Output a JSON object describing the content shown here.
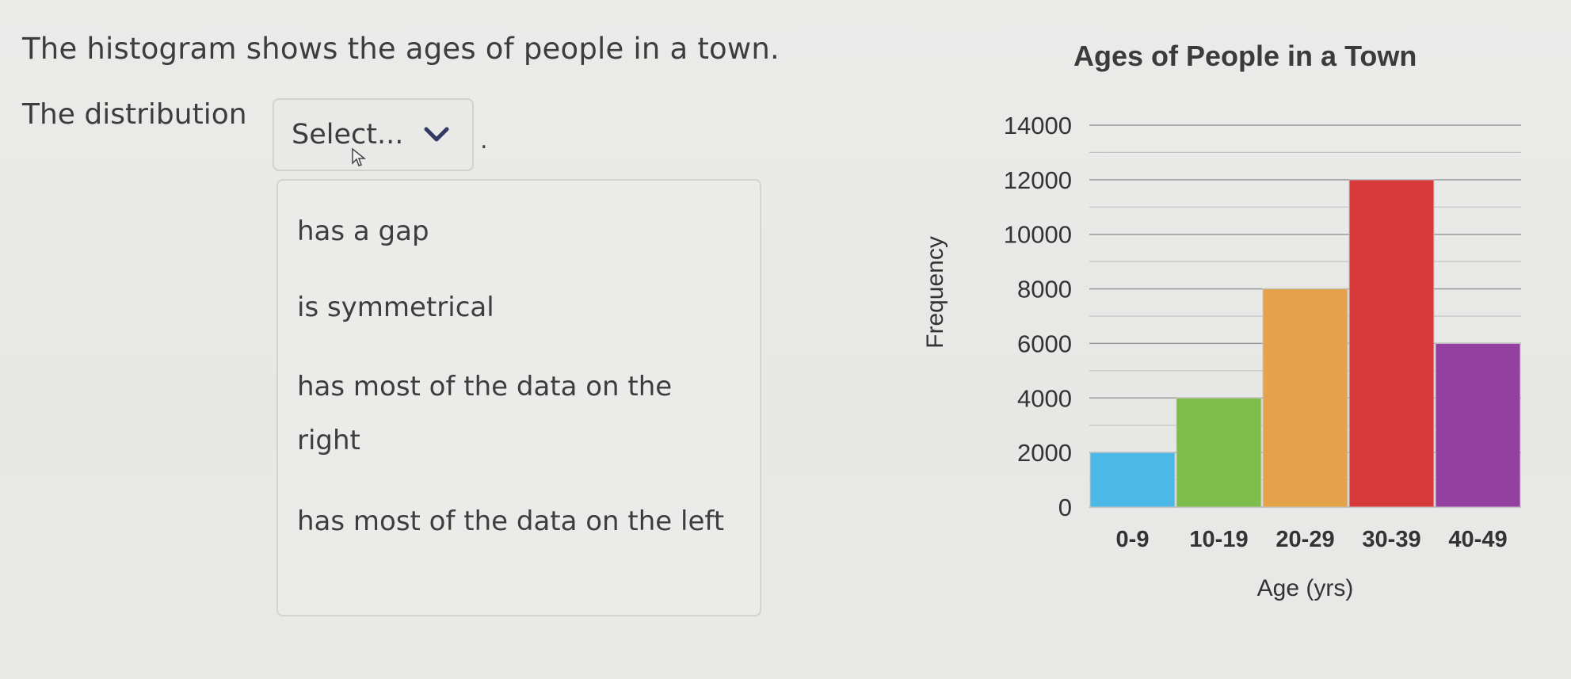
{
  "question": "The histogram shows the ages of people in a town.",
  "prompt_label": "The distribution",
  "select": {
    "value": "Select...",
    "trailing": "."
  },
  "dropdown": {
    "options": [
      "has a gap",
      "is symmetrical",
      "has most of the data on the right",
      "has most of the data on the left"
    ]
  },
  "icons": {
    "chevron": "chevron-down-icon",
    "cursor": "mouse-pointer-icon"
  },
  "chart_data": {
    "type": "bar",
    "title": "Ages of People in a Town",
    "xlabel": "Age (yrs)",
    "ylabel": "Frequency",
    "categories": [
      "0-9",
      "10-19",
      "20-29",
      "30-39",
      "40-49"
    ],
    "values": [
      2000,
      4000,
      8000,
      12000,
      6000
    ],
    "ylim": [
      0,
      14000
    ],
    "yticks": [
      "0",
      "2000",
      "4000",
      "6000",
      "8000",
      "10000",
      "12000",
      "14000"
    ],
    "colors": [
      "#4cb8e6",
      "#7dbd4c",
      "#e5a24a",
      "#d83a3a",
      "#9340a0"
    ],
    "grid": true,
    "legend": "none"
  }
}
